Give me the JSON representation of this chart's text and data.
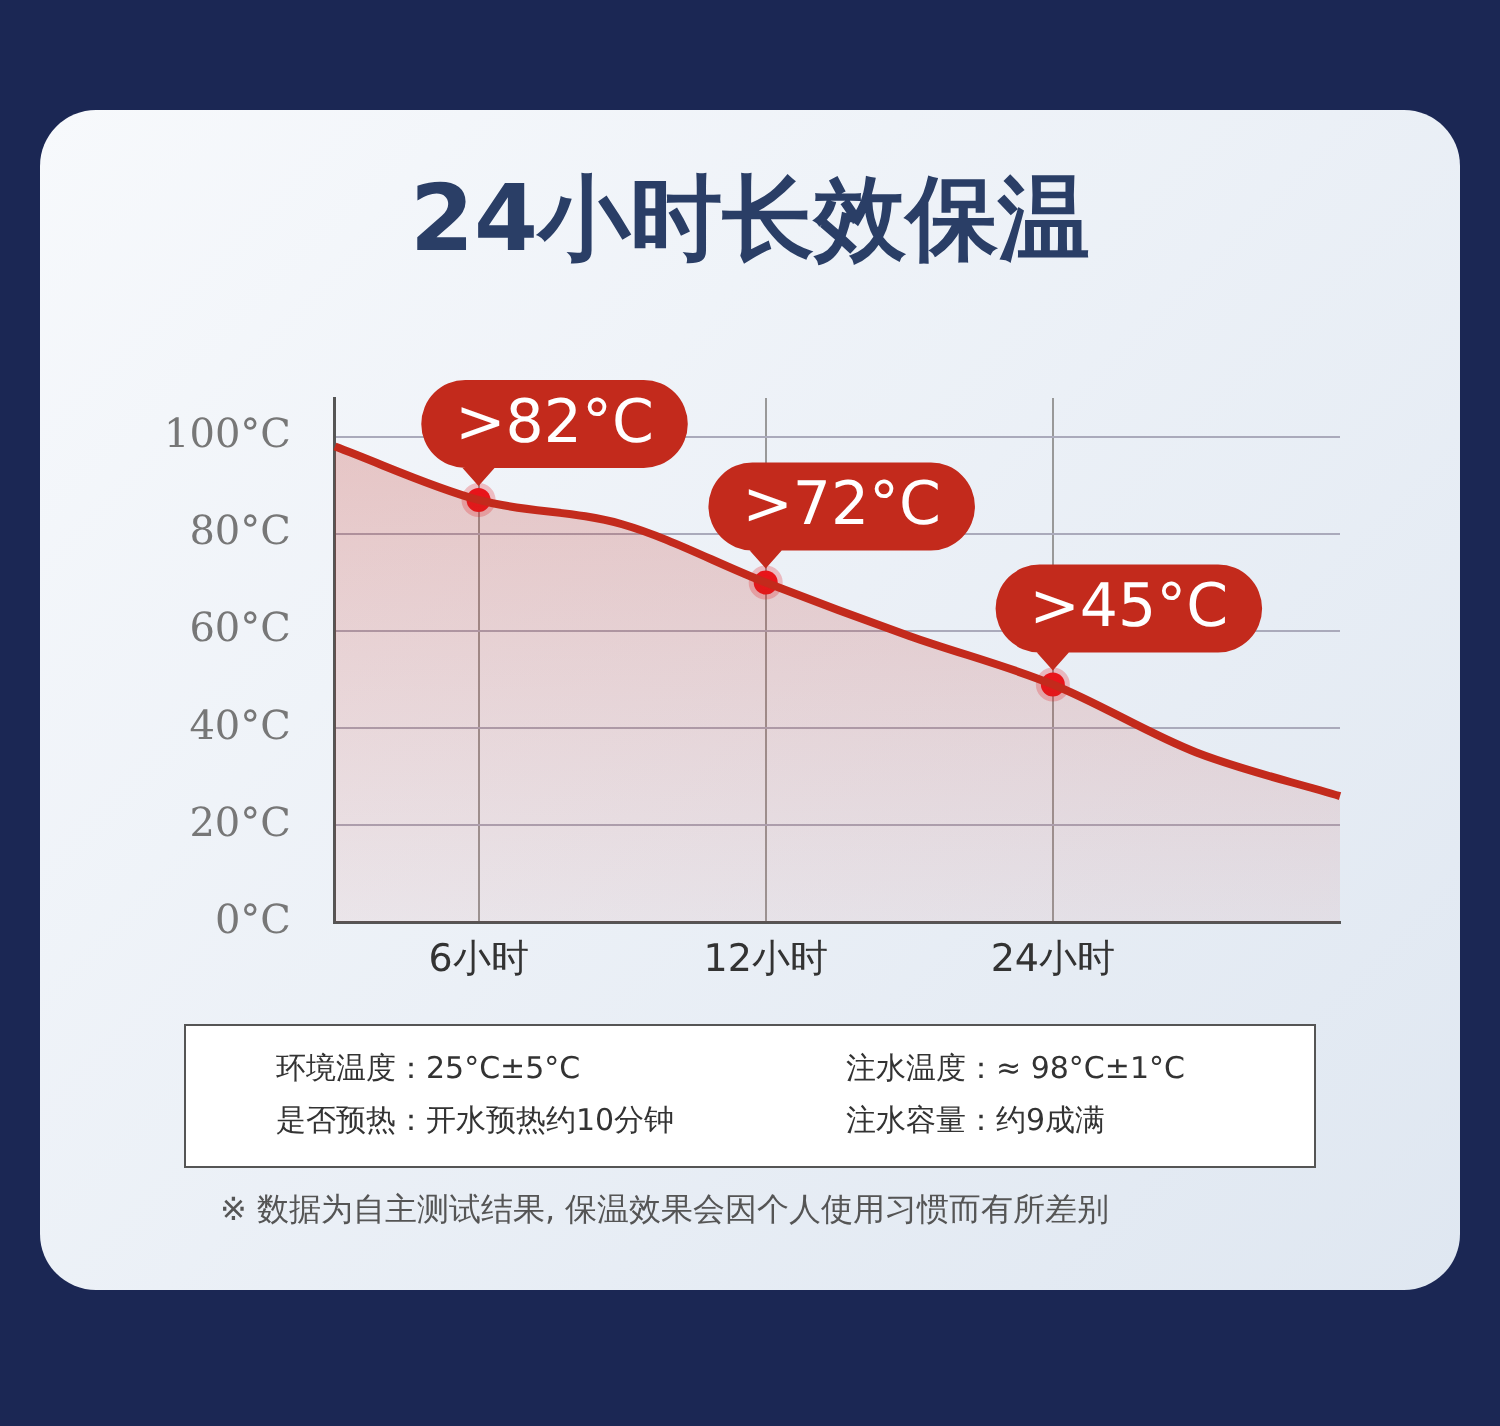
{
  "chart_data": {
    "type": "area",
    "title": "24小时长效保温",
    "categories": [
      null,
      "6小时",
      null,
      "12小时",
      null,
      "24小时",
      null,
      null
    ],
    "series": [
      {
        "color": "#c32a1c",
        "values": [
          98,
          87,
          82,
          70,
          59,
          49,
          35,
          26
        ]
      },
      {
        "type": "scatter",
        "marker": "circle",
        "color": "#e8141a",
        "values": [
          null,
          87,
          null,
          70,
          null,
          49,
          null,
          null
        ]
      }
    ],
    "ylim": [
      0,
      108
    ],
    "yticks": [
      {
        "value": 0,
        "label": "0°C"
      },
      {
        "value": 20,
        "label": "20°C"
      },
      {
        "value": 40,
        "label": "40°C"
      },
      {
        "value": 60,
        "label": "60°C"
      },
      {
        "value": 80,
        "label": "80°C"
      },
      {
        "value": 100,
        "label": "100°C"
      }
    ],
    "grid": true,
    "legend": false,
    "annotations": [
      {
        "text": ">82°C",
        "x": "6小时",
        "y": 87
      },
      {
        "text": ">72°C",
        "x": "12小时",
        "y": 70
      },
      {
        "text": ">45°C",
        "x": "24小时",
        "y": 49
      },
      "环境温度：25°C±5°C",
      "注水温度：≈ 98°C±1°C",
      "是否预热：开水预热约10分钟",
      "注水容量：约9成满",
      "※  数据为自主测试结果, 保温效果会因个人使用习惯而有所差别"
    ]
  }
}
